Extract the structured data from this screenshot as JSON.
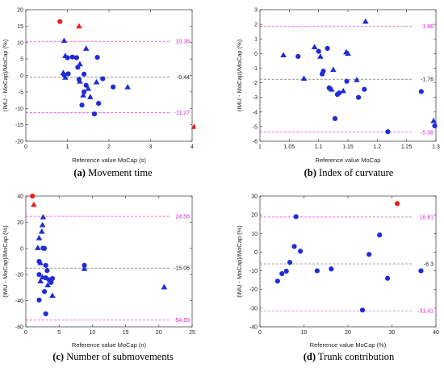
{
  "colors": {
    "marker": "#1f2cd6",
    "highlight": "#e82020",
    "limit": "#e020e0",
    "mean": "#555555",
    "axis": "#333333"
  },
  "chart_data": [
    {
      "type": "scatter",
      "caption_letter": "(a)",
      "caption_text": " Movement time",
      "xlabel": "Reference value MoCap (s)",
      "ylabel": "(IMU - MoCap)/MoCap (%)",
      "xlim": [
        0,
        4
      ],
      "ylim": [
        -20,
        20
      ],
      "xticks": [
        0,
        1,
        2,
        3,
        4
      ],
      "xtick_labels": [
        "0",
        "1",
        "2",
        "3",
        "4"
      ],
      "yticks": [
        -20,
        -15,
        -10,
        -5,
        0,
        5,
        10,
        15,
        20
      ],
      "ytick_labels": [
        "-20",
        "-15",
        "-10",
        "-5",
        "0",
        "5",
        "10",
        "15",
        "20"
      ],
      "reference_lines": [
        {
          "value": 10.38,
          "label": "10.38",
          "kind": "limit"
        },
        {
          "value": -0.44,
          "label": "-0.44",
          "kind": "mean"
        },
        {
          "value": -11.27,
          "label": "-11.27",
          "kind": "limit"
        }
      ],
      "points": [
        [
          0.82,
          16.4,
          "circle",
          "highlight"
        ],
        [
          1.28,
          15.0,
          "triangle",
          "highlight"
        ],
        [
          4.05,
          -15.6,
          "triangle",
          "highlight"
        ],
        [
          0.92,
          10.6,
          "triangle",
          "normal"
        ],
        [
          0.95,
          6.0,
          "triangle",
          "normal"
        ],
        [
          1.0,
          5.4,
          "circle",
          "normal"
        ],
        [
          1.12,
          5.6,
          "circle",
          "normal"
        ],
        [
          1.22,
          5.4,
          "circle",
          "normal"
        ],
        [
          1.3,
          3.5,
          "triangle",
          "normal"
        ],
        [
          1.25,
          2.5,
          "circle",
          "normal"
        ],
        [
          1.45,
          8.2,
          "triangle",
          "normal"
        ],
        [
          1.72,
          5.5,
          "circle",
          "normal"
        ],
        [
          0.9,
          0.8,
          "triangle",
          "normal"
        ],
        [
          0.92,
          0.2,
          "circle",
          "normal"
        ],
        [
          0.95,
          -0.6,
          "triangle",
          "normal"
        ],
        [
          1.02,
          0.5,
          "circle",
          "normal"
        ],
        [
          1.28,
          -1.2,
          "circle",
          "normal"
        ],
        [
          1.3,
          -1.8,
          "triangle",
          "normal"
        ],
        [
          1.4,
          0.4,
          "circle",
          "normal"
        ],
        [
          1.45,
          -3.0,
          "circle",
          "normal"
        ],
        [
          1.5,
          -4.0,
          "triangle",
          "normal"
        ],
        [
          1.4,
          -5.0,
          "circle",
          "normal"
        ],
        [
          1.38,
          -6.0,
          "triangle",
          "normal"
        ],
        [
          1.35,
          -9.0,
          "circle",
          "normal"
        ],
        [
          1.55,
          -6.5,
          "triangle",
          "normal"
        ],
        [
          1.65,
          -11.7,
          "circle",
          "normal"
        ],
        [
          1.75,
          -8.5,
          "circle",
          "normal"
        ],
        [
          1.7,
          -2.0,
          "triangle",
          "normal"
        ],
        [
          1.85,
          -1.0,
          "circle",
          "normal"
        ],
        [
          2.1,
          -3.5,
          "circle",
          "normal"
        ],
        [
          2.45,
          -3.5,
          "triangle",
          "normal"
        ]
      ]
    },
    {
      "type": "scatter",
      "caption_letter": "(b)",
      "caption_text": " Index of curvature",
      "xlabel": "Reference value MoCap",
      "ylabel": "(IMU - MoCap)/MoCap (%)",
      "xlim": [
        1,
        1.3
      ],
      "ylim": [
        -6,
        3
      ],
      "xticks": [
        1,
        1.05,
        1.1,
        1.15,
        1.2,
        1.25,
        1.3
      ],
      "xtick_labels": [
        "1",
        "1.05",
        "1.1",
        "1.15",
        "1.2",
        "1.25",
        "1.3"
      ],
      "yticks": [
        -6,
        -5,
        -4,
        -3,
        -2,
        -1,
        0,
        1,
        2,
        3
      ],
      "ytick_labels": [
        "-6",
        "-5",
        "-4",
        "-3",
        "-2",
        "-1",
        "0",
        "1",
        "2",
        "3"
      ],
      "reference_lines": [
        {
          "value": 1.86,
          "label": "1.86",
          "kind": "limit"
        },
        {
          "value": -1.76,
          "label": "-1.76",
          "kind": "mean"
        },
        {
          "value": -5.38,
          "label": "-5.38",
          "kind": "limit"
        }
      ],
      "points": [
        [
          1.04,
          -0.1,
          "triangle",
          "normal"
        ],
        [
          1.065,
          -0.2,
          "circle",
          "normal"
        ],
        [
          1.075,
          -1.7,
          "triangle",
          "normal"
        ],
        [
          1.093,
          0.45,
          "triangle",
          "normal"
        ],
        [
          1.1,
          0.15,
          "circle",
          "normal"
        ],
        [
          1.103,
          -0.2,
          "triangle",
          "normal"
        ],
        [
          1.106,
          -1.4,
          "circle",
          "normal"
        ],
        [
          1.108,
          -1.2,
          "circle",
          "normal"
        ],
        [
          1.115,
          0.35,
          "circle",
          "normal"
        ],
        [
          1.118,
          -2.35,
          "circle",
          "normal"
        ],
        [
          1.122,
          -2.45,
          "triangle",
          "normal"
        ],
        [
          1.125,
          -1.1,
          "triangle",
          "normal"
        ],
        [
          1.128,
          -4.45,
          "circle",
          "normal"
        ],
        [
          1.132,
          -2.8,
          "circle",
          "normal"
        ],
        [
          1.135,
          -2.7,
          "circle",
          "normal"
        ],
        [
          1.142,
          -2.55,
          "triangle",
          "normal"
        ],
        [
          1.147,
          0.1,
          "triangle",
          "normal"
        ],
        [
          1.15,
          0.0,
          "triangle",
          "normal"
        ],
        [
          1.148,
          -1.9,
          "circle",
          "normal"
        ],
        [
          1.165,
          -1.8,
          "triangle",
          "normal"
        ],
        [
          1.168,
          -3.0,
          "circle",
          "normal"
        ],
        [
          1.178,
          -2.45,
          "circle",
          "normal"
        ],
        [
          1.18,
          2.2,
          "triangle",
          "normal"
        ],
        [
          1.218,
          -5.35,
          "circle",
          "normal"
        ],
        [
          1.275,
          -2.6,
          "circle",
          "normal"
        ],
        [
          1.296,
          -4.6,
          "triangle",
          "normal"
        ],
        [
          1.298,
          -4.95,
          "circle",
          "normal"
        ]
      ]
    },
    {
      "type": "scatter",
      "caption_letter": "(c)",
      "caption_text": " Number of submovements",
      "xlabel": "Reference value MoCap (n)",
      "ylabel": "(IMU - MoCap)/MoCap (%)",
      "xlim": [
        0,
        25
      ],
      "ylim": [
        -60,
        40
      ],
      "xticks": [
        0,
        5,
        10,
        15,
        20,
        25
      ],
      "xtick_labels": [
        "0",
        "5",
        "10",
        "15",
        "20",
        "25"
      ],
      "yticks": [
        -60,
        -40,
        -20,
        0,
        20,
        40
      ],
      "ytick_labels": [
        "-60",
        "-40",
        "-20",
        "0",
        "20",
        "40"
      ],
      "reference_lines": [
        {
          "value": 24.56,
          "label": "24.56",
          "kind": "limit"
        },
        {
          "value": -15.06,
          "label": "-15.06",
          "kind": "mean"
        },
        {
          "value": -54.69,
          "label": "-54.69",
          "kind": "limit"
        }
      ],
      "points": [
        [
          1.0,
          40.0,
          "circle",
          "highlight"
        ],
        [
          1.2,
          33.5,
          "triangle",
          "highlight"
        ],
        [
          2.6,
          24.0,
          "triangle",
          "normal"
        ],
        [
          2.5,
          18.0,
          "triangle",
          "normal"
        ],
        [
          2.4,
          13.0,
          "triangle",
          "normal"
        ],
        [
          2.0,
          8.0,
          "triangle",
          "normal"
        ],
        [
          1.8,
          0.5,
          "triangle",
          "normal"
        ],
        [
          2.6,
          0.2,
          "circle",
          "normal"
        ],
        [
          2.8,
          0.0,
          "circle",
          "normal"
        ],
        [
          2.0,
          -10.0,
          "circle",
          "normal"
        ],
        [
          2.2,
          -11.0,
          "triangle",
          "normal"
        ],
        [
          3.0,
          -13.0,
          "circle",
          "normal"
        ],
        [
          3.2,
          -17.0,
          "circle",
          "normal"
        ],
        [
          2.0,
          -20.0,
          "circle",
          "normal"
        ],
        [
          2.5,
          -22.0,
          "triangle",
          "normal"
        ],
        [
          3.0,
          -22.5,
          "circle",
          "normal"
        ],
        [
          3.5,
          -24.0,
          "circle",
          "normal"
        ],
        [
          2.2,
          -25.0,
          "triangle",
          "normal"
        ],
        [
          3.8,
          -26.0,
          "circle",
          "normal"
        ],
        [
          4.0,
          -23.0,
          "circle",
          "normal"
        ],
        [
          3.3,
          -28.0,
          "triangle",
          "normal"
        ],
        [
          2.8,
          -33.0,
          "circle",
          "normal"
        ],
        [
          4.0,
          -36.0,
          "triangle",
          "normal"
        ],
        [
          2.0,
          -39.5,
          "circle",
          "normal"
        ],
        [
          3.0,
          -50.0,
          "circle",
          "normal"
        ],
        [
          8.8,
          -13.0,
          "circle",
          "normal"
        ],
        [
          8.8,
          -15.5,
          "triangle",
          "normal"
        ],
        [
          20.8,
          -29.5,
          "triangle",
          "normal"
        ]
      ]
    },
    {
      "type": "scatter",
      "caption_letter": "(d)",
      "caption_text": " Trunk contribution",
      "xlabel": "Reference value MoCap (%)",
      "ylabel": "(IMU - MoCap)/MoCap (%)",
      "xlim": [
        0,
        40
      ],
      "ylim": [
        -40,
        30
      ],
      "xticks": [
        0,
        10,
        20,
        30,
        40
      ],
      "xtick_labels": [
        "0",
        "10",
        "20",
        "30",
        "40"
      ],
      "yticks": [
        -40,
        -30,
        -20,
        -10,
        0,
        10,
        20,
        30
      ],
      "ytick_labels": [
        "-40",
        "-30",
        "-20",
        "-10",
        "0",
        "10",
        "20",
        "30"
      ],
      "reference_lines": [
        {
          "value": 18.81,
          "label": "18.81",
          "kind": "limit"
        },
        {
          "value": -6.3,
          "label": "-6.3",
          "kind": "mean"
        },
        {
          "value": -31.41,
          "label": "-31.41",
          "kind": "limit"
        }
      ],
      "points": [
        [
          31.2,
          26.0,
          "circle",
          "highlight"
        ],
        [
          8.2,
          19.0,
          "circle",
          "normal"
        ],
        [
          27.2,
          9.2,
          "circle",
          "normal"
        ],
        [
          7.8,
          3.0,
          "circle",
          "normal"
        ],
        [
          9.2,
          0.5,
          "circle",
          "normal"
        ],
        [
          24.8,
          -1.2,
          "circle",
          "normal"
        ],
        [
          6.8,
          -5.5,
          "circle",
          "normal"
        ],
        [
          13.0,
          -10.0,
          "circle",
          "normal"
        ],
        [
          16.2,
          -9.0,
          "circle",
          "normal"
        ],
        [
          6.0,
          -10.2,
          "circle",
          "normal"
        ],
        [
          5.0,
          -11.5,
          "circle",
          "normal"
        ],
        [
          36.6,
          -10.0,
          "circle",
          "normal"
        ],
        [
          4.0,
          -15.5,
          "circle",
          "normal"
        ],
        [
          29.0,
          -14.0,
          "circle",
          "normal"
        ],
        [
          23.3,
          -31.0,
          "circle",
          "normal"
        ]
      ]
    }
  ]
}
